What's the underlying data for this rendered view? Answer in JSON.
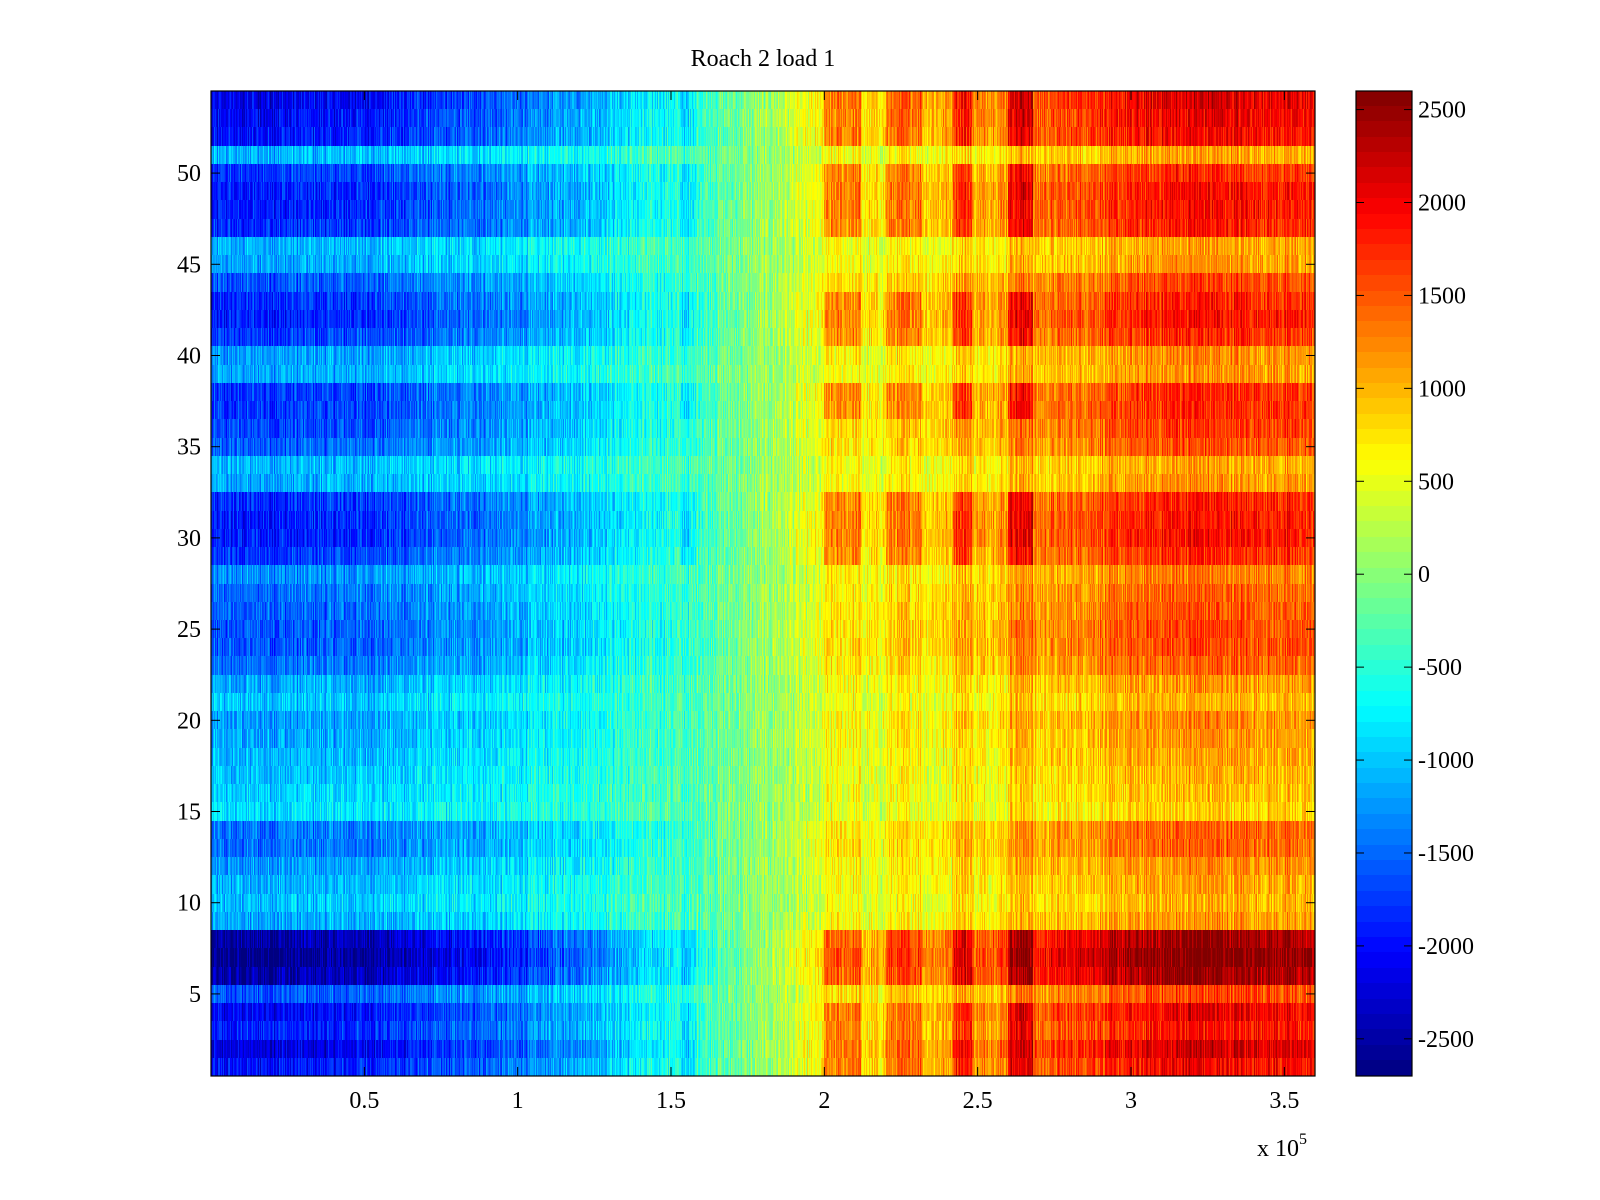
{
  "chart_data": {
    "type": "heatmap",
    "title": "Roach 2 load 1",
    "xlabel": "",
    "ylabel": "",
    "x_multiplier_label": {
      "base": "x 10",
      "exponent": "5"
    },
    "xlim": [
      0,
      3.6
    ],
    "ylim": [
      0.5,
      54.5
    ],
    "x_ticks": [
      0.5,
      1,
      1.5,
      2,
      2.5,
      3,
      3.5
    ],
    "x_tick_labels": [
      "0.5",
      "1",
      "1.5",
      "2",
      "2.5",
      "3",
      "3.5"
    ],
    "y_ticks": [
      5,
      10,
      15,
      20,
      25,
      30,
      35,
      40,
      45,
      50
    ],
    "y_tick_labels": [
      "5",
      "10",
      "15",
      "20",
      "25",
      "30",
      "35",
      "40",
      "45",
      "50"
    ],
    "rows": 54,
    "colormap": "jet",
    "clim": [
      -2700,
      2600
    ],
    "colorbar_ticks": [
      2500,
      2000,
      1500,
      1000,
      500,
      0,
      -500,
      -1000,
      -1500,
      -2000,
      -2500
    ],
    "colorbar_tick_labels": [
      "2500",
      "2000",
      "1500",
      "1000",
      "500",
      "0",
      "-500",
      "-1000",
      "-1500",
      "-2000",
      "-2500"
    ],
    "column_trend_profile": [
      {
        "x": 0.0,
        "value": -1500
      },
      {
        "x": 0.5,
        "value": -1400
      },
      {
        "x": 1.0,
        "value": -1050
      },
      {
        "x": 1.5,
        "value": -450
      },
      {
        "x": 1.75,
        "value": -50
      },
      {
        "x": 2.0,
        "value": 450
      },
      {
        "x": 2.5,
        "value": 850
      },
      {
        "x": 2.85,
        "value": 1200
      },
      {
        "x": 3.2,
        "value": 1500
      },
      {
        "x": 3.6,
        "value": 1350
      }
    ],
    "row_amplitude_multipliers": [
      1.35,
      1.5,
      1.3,
      1.4,
      1.1,
      1.7,
      1.8,
      1.7,
      0.8,
      0.7,
      0.75,
      0.85,
      1.0,
      1.0,
      0.6,
      0.65,
      0.7,
      0.75,
      0.8,
      0.85,
      0.7,
      0.8,
      1.0,
      1.1,
      1.1,
      1.05,
      1.0,
      0.9,
      1.2,
      1.3,
      1.3,
      1.25,
      0.8,
      0.75,
      1.05,
      1.15,
      1.2,
      1.2,
      0.8,
      0.85,
      1.2,
      1.3,
      1.25,
      1.1,
      0.8,
      0.75,
      1.25,
      1.3,
      1.3,
      1.2,
      0.75,
      1.35,
      1.4,
      1.45
    ],
    "intense_bands_x": [
      {
        "from": 2.0,
        "to": 2.12,
        "boost": 600
      },
      {
        "from": 2.2,
        "to": 2.32,
        "boost": 450
      },
      {
        "from": 2.42,
        "to": 2.48,
        "boost": 700
      },
      {
        "from": 2.6,
        "to": 2.68,
        "boost": 750
      },
      {
        "from": 1.53,
        "to": 1.58,
        "boost": 350
      }
    ]
  }
}
